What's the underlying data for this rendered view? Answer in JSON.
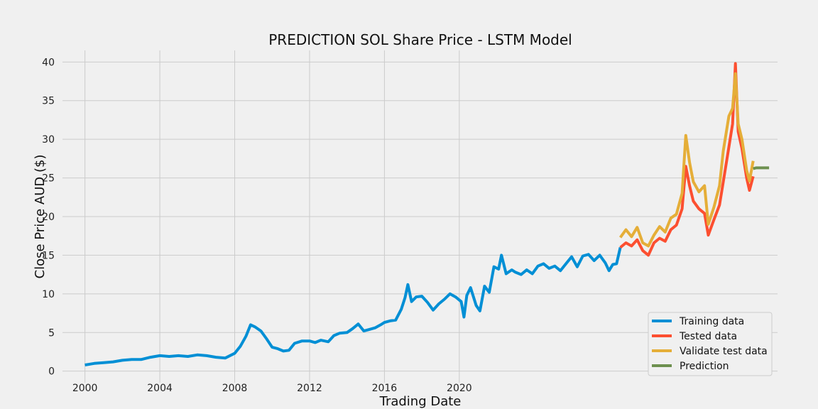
{
  "chart_data": {
    "type": "line",
    "title": "PREDICTION SOL Share Price - LSTM Model",
    "xlabel": "Trading Date",
    "ylabel": "Close Price AUD ($)",
    "xlim": [
      1998.8,
      2037.0
    ],
    "ylim": [
      -1.5,
      41.5
    ],
    "x_ticks": [
      2000,
      2004,
      2008,
      2012,
      2016,
      2020
    ],
    "y_ticks": [
      0,
      5,
      10,
      15,
      20,
      25,
      30,
      35,
      40
    ],
    "grid": true,
    "legend_position": "bottom-right",
    "background": "#f0f0f0",
    "series": [
      {
        "name": "Training data",
        "color": "#008fd5",
        "points": [
          [
            2000.0,
            0.8
          ],
          [
            2000.5,
            1.0
          ],
          [
            2001.0,
            1.1
          ],
          [
            2001.5,
            1.2
          ],
          [
            2002.0,
            1.4
          ],
          [
            2002.5,
            1.5
          ],
          [
            2003.0,
            1.5
          ],
          [
            2003.5,
            1.8
          ],
          [
            2004.0,
            2.0
          ],
          [
            2004.5,
            1.9
          ],
          [
            2005.0,
            2.0
          ],
          [
            2005.5,
            1.9
          ],
          [
            2006.0,
            2.1
          ],
          [
            2006.5,
            2.0
          ],
          [
            2007.0,
            1.8
          ],
          [
            2007.5,
            1.7
          ],
          [
            2008.0,
            2.3
          ],
          [
            2008.3,
            3.2
          ],
          [
            2008.6,
            4.5
          ],
          [
            2008.85,
            6.0
          ],
          [
            2009.1,
            5.7
          ],
          [
            2009.4,
            5.2
          ],
          [
            2009.7,
            4.2
          ],
          [
            2010.0,
            3.1
          ],
          [
            2010.3,
            2.9
          ],
          [
            2010.6,
            2.6
          ],
          [
            2010.9,
            2.7
          ],
          [
            2011.2,
            3.6
          ],
          [
            2011.6,
            3.9
          ],
          [
            2012.0,
            3.9
          ],
          [
            2012.3,
            3.7
          ],
          [
            2012.6,
            4.0
          ],
          [
            2013.0,
            3.8
          ],
          [
            2013.3,
            4.6
          ],
          [
            2013.6,
            4.9
          ],
          [
            2014.0,
            5.0
          ],
          [
            2014.3,
            5.5
          ],
          [
            2014.6,
            6.1
          ],
          [
            2014.9,
            5.2
          ],
          [
            2015.2,
            5.4
          ],
          [
            2015.5,
            5.6
          ],
          [
            2015.8,
            6.0
          ],
          [
            2016.0,
            6.3
          ],
          [
            2016.3,
            6.5
          ],
          [
            2016.6,
            6.6
          ],
          [
            2016.9,
            8.0
          ],
          [
            2017.1,
            9.5
          ],
          [
            2017.25,
            11.2
          ],
          [
            2017.45,
            9.0
          ],
          [
            2017.7,
            9.6
          ],
          [
            2018.0,
            9.7
          ],
          [
            2018.3,
            8.9
          ],
          [
            2018.6,
            7.9
          ],
          [
            2018.9,
            8.7
          ],
          [
            2019.2,
            9.3
          ],
          [
            2019.5,
            10.0
          ],
          [
            2019.8,
            9.6
          ],
          [
            2020.1,
            9.0
          ],
          [
            2020.25,
            7.0
          ],
          [
            2020.4,
            9.8
          ],
          [
            2020.6,
            10.8
          ],
          [
            2020.9,
            8.5
          ],
          [
            2021.1,
            7.8
          ],
          [
            2021.35,
            11.0
          ],
          [
            2021.6,
            10.2
          ],
          [
            2021.85,
            13.5
          ],
          [
            2022.1,
            13.2
          ],
          [
            2022.25,
            15.0
          ],
          [
            2022.5,
            12.6
          ],
          [
            2022.8,
            13.1
          ],
          [
            2023.0,
            12.8
          ],
          [
            2023.3,
            12.5
          ],
          [
            2023.6,
            13.1
          ],
          [
            2023.9,
            12.6
          ],
          [
            2024.2,
            13.6
          ],
          [
            2024.5,
            13.9
          ],
          [
            2024.8,
            13.3
          ],
          [
            2025.1,
            13.6
          ],
          [
            2025.4,
            13.0
          ],
          [
            2025.7,
            13.9
          ],
          [
            2026.0,
            14.8
          ],
          [
            2026.3,
            13.5
          ],
          [
            2026.6,
            14.9
          ],
          [
            2026.9,
            15.1
          ],
          [
            2027.2,
            14.3
          ],
          [
            2027.5,
            15.0
          ],
          [
            2027.8,
            14.0
          ],
          [
            2028.0,
            13.0
          ],
          [
            2028.2,
            13.8
          ],
          [
            2028.4,
            13.9
          ],
          [
            2028.6,
            16.0
          ]
        ]
      },
      {
        "name": "Tested data",
        "color": "#fc4f30",
        "points": [
          [
            2028.6,
            16.0
          ],
          [
            2028.9,
            16.6
          ],
          [
            2029.2,
            16.2
          ],
          [
            2029.5,
            17.0
          ],
          [
            2029.8,
            15.6
          ],
          [
            2030.1,
            15.0
          ],
          [
            2030.4,
            16.6
          ],
          [
            2030.7,
            17.2
          ],
          [
            2031.0,
            16.8
          ],
          [
            2031.3,
            18.3
          ],
          [
            2031.6,
            18.9
          ],
          [
            2031.9,
            21.0
          ],
          [
            2032.1,
            26.5
          ],
          [
            2032.3,
            24.0
          ],
          [
            2032.5,
            22.0
          ],
          [
            2032.8,
            21.0
          ],
          [
            2033.1,
            20.4
          ],
          [
            2033.3,
            17.6
          ],
          [
            2033.6,
            19.6
          ],
          [
            2033.9,
            21.5
          ],
          [
            2034.1,
            24.5
          ],
          [
            2034.4,
            29.0
          ],
          [
            2034.6,
            32.0
          ],
          [
            2034.75,
            39.8
          ],
          [
            2034.9,
            31.0
          ],
          [
            2035.1,
            28.8
          ],
          [
            2035.35,
            25.0
          ],
          [
            2035.5,
            23.4
          ],
          [
            2035.7,
            25.2
          ]
        ]
      },
      {
        "name": "Validate test data",
        "color": "#e5ae38",
        "points": [
          [
            2028.6,
            17.3
          ],
          [
            2028.9,
            18.3
          ],
          [
            2029.2,
            17.4
          ],
          [
            2029.5,
            18.6
          ],
          [
            2029.8,
            16.6
          ],
          [
            2030.1,
            16.2
          ],
          [
            2030.4,
            17.6
          ],
          [
            2030.7,
            18.7
          ],
          [
            2031.0,
            18.0
          ],
          [
            2031.3,
            19.8
          ],
          [
            2031.6,
            20.3
          ],
          [
            2031.9,
            23.0
          ],
          [
            2032.1,
            30.5
          ],
          [
            2032.3,
            27.0
          ],
          [
            2032.5,
            24.5
          ],
          [
            2032.8,
            23.2
          ],
          [
            2033.1,
            24.0
          ],
          [
            2033.3,
            19.0
          ],
          [
            2033.6,
            21.2
          ],
          [
            2033.9,
            24.0
          ],
          [
            2034.1,
            28.5
          ],
          [
            2034.4,
            33.0
          ],
          [
            2034.6,
            34.0
          ],
          [
            2034.75,
            38.5
          ],
          [
            2034.9,
            32.0
          ],
          [
            2035.1,
            30.0
          ],
          [
            2035.35,
            26.0
          ],
          [
            2035.5,
            24.6
          ],
          [
            2035.7,
            27.2
          ]
        ]
      },
      {
        "name": "Prediction",
        "color": "#6d904f",
        "points": [
          [
            2035.7,
            26.2
          ],
          [
            2035.85,
            26.3
          ],
          [
            2036.2,
            26.3
          ],
          [
            2036.55,
            26.3
          ]
        ]
      }
    ]
  }
}
